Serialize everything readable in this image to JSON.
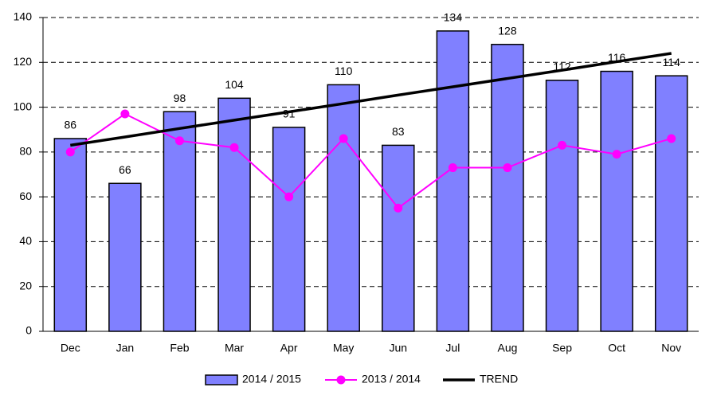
{
  "chart_data": {
    "type": "bar",
    "categories": [
      "Dec",
      "Jan",
      "Feb",
      "Mar",
      "Apr",
      "May",
      "Jun",
      "Jul",
      "Aug",
      "Sep",
      "Oct",
      "Nov"
    ],
    "series": [
      {
        "name": "2014 / 2015",
        "type": "bar",
        "color": "#8080ff",
        "values": [
          86,
          66,
          98,
          104,
          91,
          110,
          83,
          134,
          128,
          112,
          116,
          114
        ]
      },
      {
        "name": "2013 / 2014",
        "type": "line",
        "color": "#ff00ff",
        "values": [
          80,
          97,
          85,
          82,
          60,
          86,
          55,
          73,
          73,
          83,
          79,
          86
        ]
      },
      {
        "name": "TREND",
        "type": "trend",
        "color": "#000000",
        "values": [
          83,
          86.7,
          90.5,
          94.2,
          97.9,
          101.6,
          105.4,
          109.1,
          112.8,
          116.5,
          120.3,
          124
        ]
      }
    ],
    "ylim": [
      0,
      140
    ],
    "yticks": [
      0,
      20,
      40,
      60,
      80,
      100,
      120,
      140
    ],
    "grid": true,
    "legend": "bottom"
  }
}
